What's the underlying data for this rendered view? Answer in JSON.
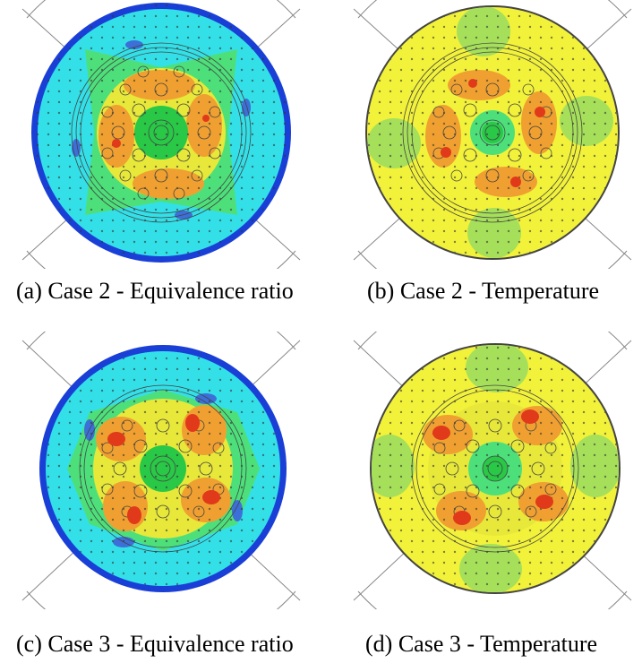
{
  "figure": {
    "panels": [
      {
        "id": "a",
        "caption": "(a) Case 2 - Equivalence ratio",
        "field": "equivalence-ratio",
        "hot_spots": [
          [
            130,
            150
          ],
          [
            225,
            135
          ],
          [
            140,
            190
          ],
          [
            210,
            205
          ]
        ]
      },
      {
        "id": "b",
        "caption": "(b) Case 2 - Temperature",
        "field": "temperature",
        "hot_spots": [
          [
            498,
            170
          ],
          [
            603,
            125
          ],
          [
            528,
            93
          ],
          [
            576,
            203
          ]
        ]
      },
      {
        "id": "c",
        "caption": "(c) Case 3 - Equivalence ratio",
        "field": "equivalence-ratio",
        "hot_spots": [
          [
            130,
            490
          ],
          [
            215,
            470
          ],
          [
            150,
            575
          ],
          [
            235,
            555
          ]
        ]
      },
      {
        "id": "d",
        "caption": "(d) Case 3 - Temperature",
        "field": "temperature",
        "hot_spots": [
          [
            495,
            485
          ],
          [
            593,
            465
          ],
          [
            515,
            578
          ],
          [
            607,
            560
          ]
        ]
      }
    ],
    "colors": {
      "outer_rim": "#1a3fd6",
      "cold_field": "#33e0e8",
      "lean_field": "#4de07a",
      "mid_field": "#e8e83a",
      "warm_field": "#f0a030",
      "hot_field": "#e03a1a",
      "temp_background": "#f2f23a",
      "temp_cool": "#a6e05a",
      "center_green": "#29c846"
    }
  }
}
